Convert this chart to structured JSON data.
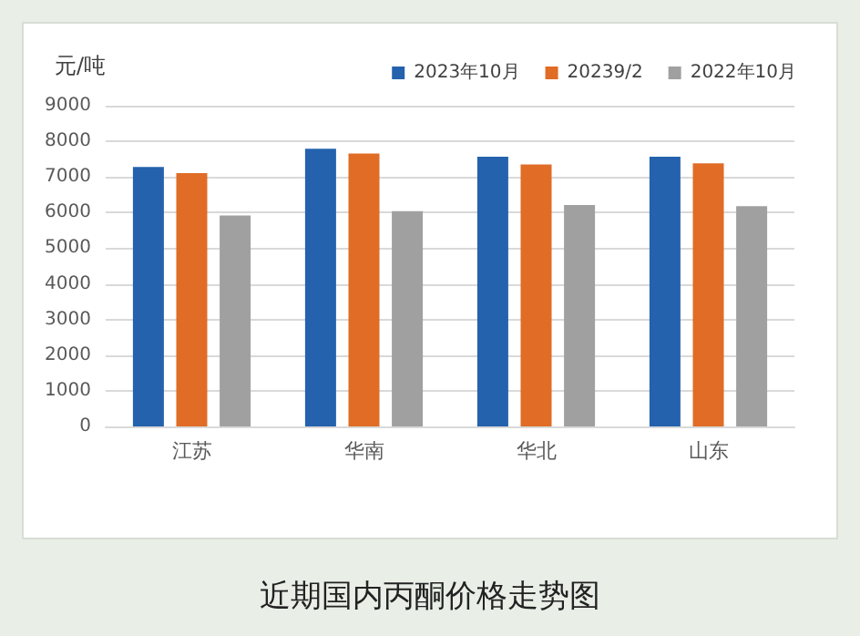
{
  "chart_data": {
    "type": "bar",
    "title": "近期国内丙酮价格走势图",
    "ylabel": "元/吨",
    "categories": [
      "江苏",
      "华南",
      "华北",
      "山东"
    ],
    "series": [
      {
        "name": "2023年10月",
        "color": "#2462ad",
        "values": [
          7280,
          7790,
          7570,
          7570
        ]
      },
      {
        "name": "20239/2",
        "color": "#e06c26",
        "values": [
          7110,
          7660,
          7350,
          7380
        ]
      },
      {
        "name": "2022年10月",
        "color": "#a0a0a0",
        "values": [
          5920,
          6040,
          6210,
          6180
        ]
      }
    ],
    "ylim": [
      0,
      9000
    ],
    "yticks": [
      0,
      1000,
      2000,
      3000,
      4000,
      5000,
      6000,
      7000,
      8000,
      9000
    ],
    "grid": "y",
    "legend": "top right"
  }
}
